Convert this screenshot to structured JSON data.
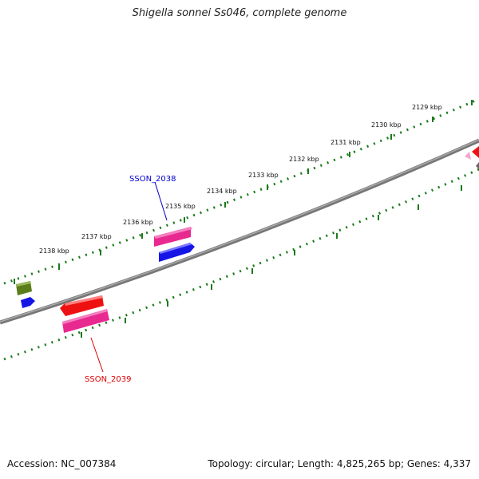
{
  "title": "Shigella sonnei Ss046, complete genome",
  "accession": "Accession: NC_007384",
  "summary": "Topology: circular; Length: 4,825,265 bp; Genes: 4,337",
  "ticks": [
    "2129 kbp",
    "2130 kbp",
    "2131 kbp",
    "2132 kbp",
    "2133 kbp",
    "2134 kbp",
    "2135 kbp",
    "2136 kbp",
    "2137 kbp",
    "2138 kbp"
  ],
  "gene_labels": [
    {
      "name": "SSON_2038",
      "color": "#0000cc"
    },
    {
      "name": "SSON_2039",
      "color": "#dd0000"
    }
  ],
  "colors": {
    "backbone": "#777777",
    "ticks": "#1a7a1a",
    "gene_red": "#ee1111",
    "gene_pink": "#e8298f",
    "gene_blue": "#1515e6",
    "gene_olive": "#5a7d1a",
    "gene_lightpink": "#f4a6d0"
  }
}
